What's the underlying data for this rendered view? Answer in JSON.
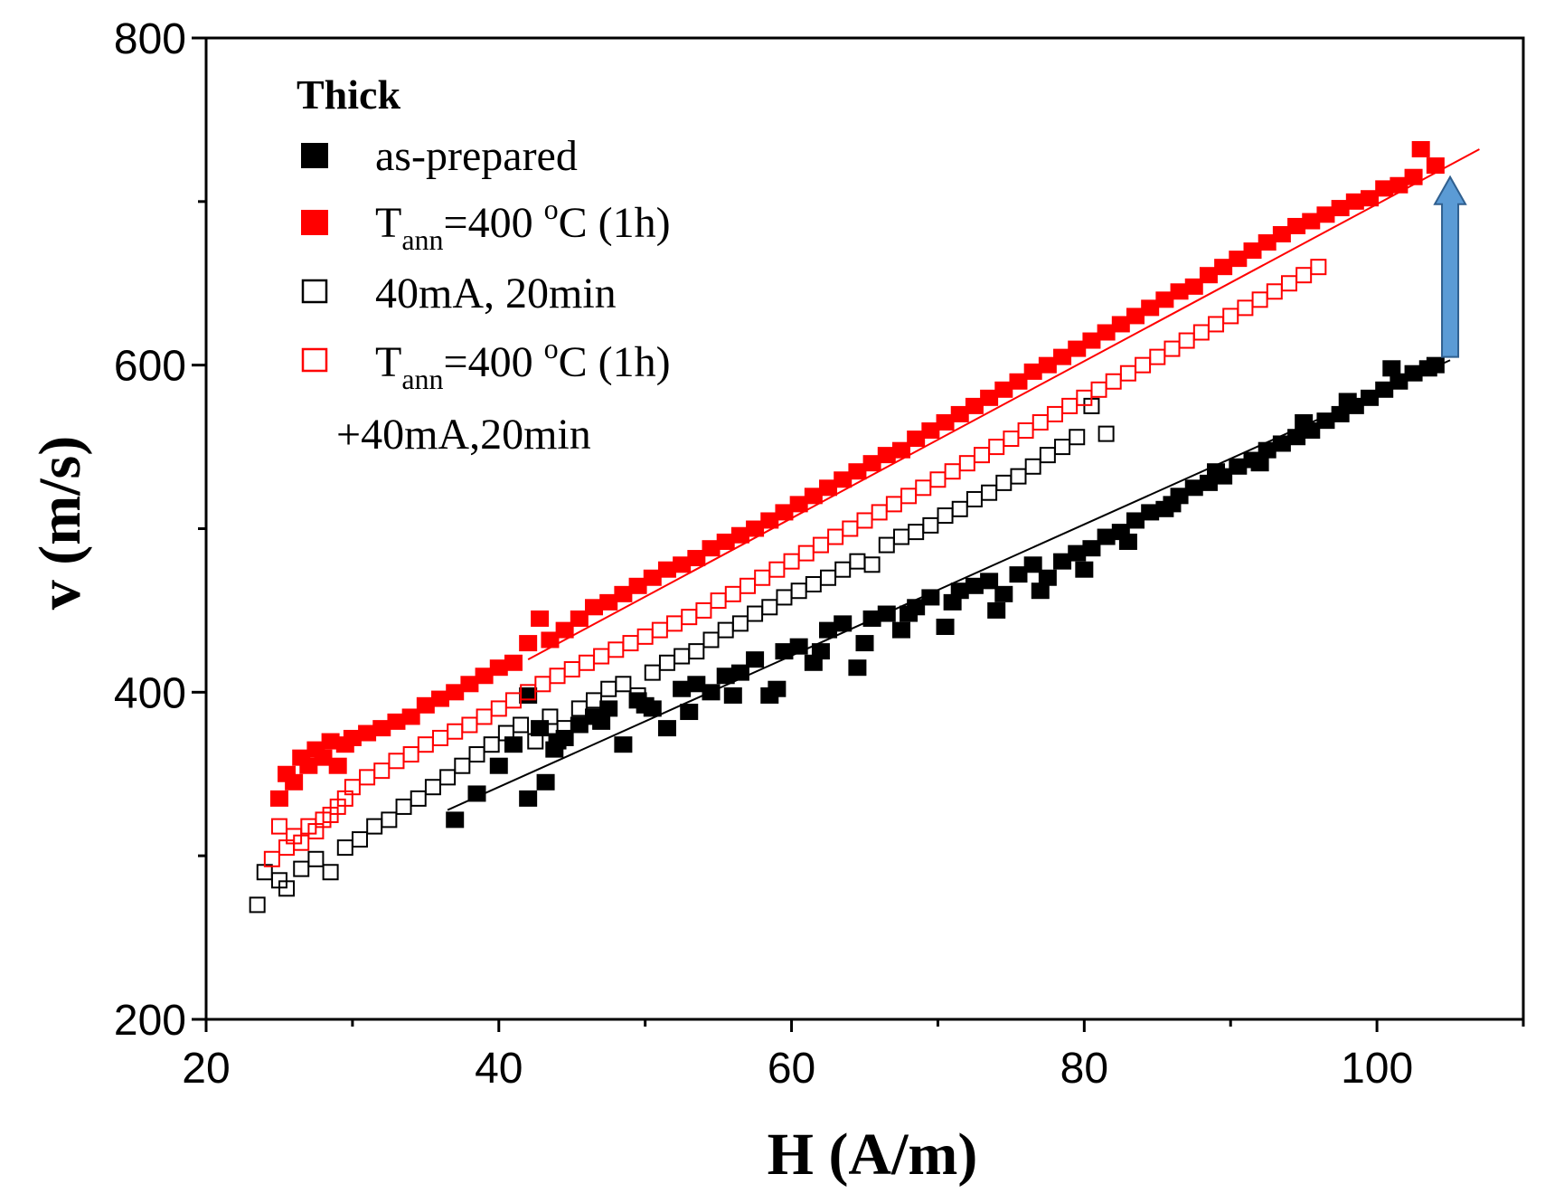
{
  "chart_data": {
    "type": "scatter",
    "title": "",
    "xlabel": "H (A/m)",
    "ylabel": "v (m/s)",
    "xlim": [
      20,
      110
    ],
    "ylim": [
      200,
      800
    ],
    "xticks": [
      20,
      40,
      60,
      80,
      100
    ],
    "yticks": [
      200,
      400,
      600,
      800
    ],
    "xtick_labels": [
      "20",
      "40",
      "60",
      "80",
      "100"
    ],
    "ytick_labels": [
      "200",
      "400",
      "600",
      "800"
    ],
    "legend": {
      "title": "Thick",
      "position": "top-left",
      "entries": {
        "as_prepared": "as-prepared",
        "ann": {
          "prefix": "T",
          "sub": "ann",
          "mid": "=400 ",
          "sup": "o",
          "suffix": "C (1h)"
        },
        "current": "40mA, 20min",
        "ann_current": {
          "prefix": "T",
          "sub": "ann",
          "mid": "=400 ",
          "sup": "o",
          "suffix": "C (1h)",
          "line2": "+40mA,20min"
        }
      }
    },
    "series": [
      {
        "name": "as-prepared",
        "marker": "filled-square",
        "color": "#000000",
        "x": [
          37,
          38.5,
          40,
          41,
          42,
          42.8,
          43.2,
          43.8,
          44.5,
          45.5,
          46.5,
          47.5,
          48.5,
          49.5,
          50.5,
          51.5,
          52.5,
          53.5,
          54.5,
          55.5,
          56.5,
          57.5,
          58.5,
          59.5,
          60.5,
          61.5,
          62.5,
          63.5,
          64.5,
          65.5,
          66.5,
          67.5,
          68.5,
          69.5,
          70.5,
          71.5,
          72.5,
          73.5,
          74.5,
          75.5,
          76.5,
          77.5,
          78.5,
          79.5,
          80.5,
          81.5,
          82.5,
          83.5,
          84.5,
          85.5,
          86.5,
          87.5,
          88.5,
          89.5,
          90.5,
          91.5,
          92.5,
          93.5,
          94.5,
          95.5,
          96.5,
          97.5,
          98.5,
          99.5,
          100.5,
          101.5,
          102.5,
          103.5,
          104,
          42,
          44,
          47,
          50,
          53,
          56,
          59,
          62,
          65,
          68,
          71,
          74,
          77,
          80,
          83,
          86,
          89,
          92,
          95,
          98,
          101
        ],
        "y": [
          322,
          338,
          355,
          368,
          335,
          378,
          345,
          365,
          372,
          380,
          385,
          390,
          368,
          395,
          390,
          378,
          402,
          405,
          400,
          410,
          412,
          420,
          398,
          425,
          428,
          418,
          438,
          442,
          415,
          445,
          448,
          438,
          452,
          458,
          440,
          462,
          465,
          468,
          460,
          472,
          478,
          470,
          480,
          485,
          488,
          495,
          498,
          505,
          510,
          512,
          520,
          525,
          528,
          532,
          538,
          542,
          548,
          552,
          556,
          560,
          566,
          570,
          575,
          580,
          585,
          590,
          595,
          598,
          600,
          398,
          370,
          382,
          392,
          388,
          398,
          402,
          425,
          430,
          448,
          455,
          450,
          462,
          475,
          492,
          515,
          535,
          540,
          565,
          578,
          598
        ]
      },
      {
        "name": "Tann=400 oC (1h)",
        "marker": "filled-square",
        "color": "#ff0000",
        "x": [
          25,
          25.5,
          26,
          26.5,
          27,
          27.5,
          28,
          28.5,
          29,
          29.5,
          30,
          31,
          32,
          33,
          34,
          35,
          36,
          37,
          38,
          39,
          40,
          41,
          42,
          42.8,
          43.5,
          44.5,
          45.5,
          46.5,
          47.5,
          48.5,
          49.5,
          50.5,
          51.5,
          52.5,
          53.5,
          54.5,
          55.5,
          56.5,
          57.5,
          58.5,
          59.5,
          60.5,
          61.5,
          62.5,
          63.5,
          64.5,
          65.5,
          66.5,
          67.5,
          68.5,
          69.5,
          70.5,
          71.5,
          72.5,
          73.5,
          74.5,
          75.5,
          76.5,
          77.5,
          78.5,
          79.5,
          80.5,
          81.5,
          82.5,
          83.5,
          84.5,
          85.5,
          86.5,
          87.5,
          88.5,
          89.5,
          90.5,
          91.5,
          92.5,
          93.5,
          94.5,
          95.5,
          96.5,
          97.5,
          98.5,
          99.5,
          100.5,
          101.5,
          102.5,
          103,
          104
        ],
        "y": [
          335,
          350,
          345,
          360,
          355,
          365,
          360,
          370,
          355,
          368,
          372,
          375,
          378,
          382,
          385,
          392,
          396,
          400,
          405,
          410,
          415,
          418,
          430,
          445,
          432,
          438,
          445,
          452,
          455,
          460,
          465,
          470,
          475,
          478,
          482,
          488,
          492,
          496,
          500,
          505,
          510,
          515,
          520,
          525,
          530,
          535,
          540,
          545,
          548,
          555,
          560,
          565,
          570,
          575,
          580,
          585,
          590,
          596,
          600,
          605,
          610,
          615,
          620,
          625,
          630,
          635,
          640,
          645,
          648,
          655,
          660,
          665,
          670,
          675,
          680,
          685,
          688,
          692,
          696,
          700,
          702,
          708,
          710,
          715,
          732,
          722
        ]
      },
      {
        "name": "40mA, 20min",
        "marker": "open-square",
        "color": "#000000",
        "x": [
          23.5,
          24,
          25,
          25.5,
          26.5,
          27.5,
          28.5,
          29.5,
          30.5,
          31.5,
          32.5,
          33.5,
          34.5,
          35.5,
          36.5,
          37.5,
          38.5,
          39.5,
          40.5,
          41.5,
          42.5,
          43.5,
          44.5,
          45.5,
          46.5,
          47.5,
          48.5,
          49.5,
          50.5,
          51.5,
          52.5,
          53.5,
          54.5,
          55.5,
          56.5,
          57.5,
          58.5,
          59.5,
          60.5,
          61.5,
          62.5,
          63.5,
          64.5,
          65.5,
          66.5,
          67.5,
          68.5,
          69.5,
          70.5,
          71.5,
          72.5,
          73.5,
          74.5,
          75.5,
          76.5,
          77.5,
          78.5,
          79.5,
          80.5,
          81.5
        ],
        "y": [
          270,
          290,
          285,
          280,
          292,
          298,
          290,
          305,
          310,
          318,
          322,
          330,
          335,
          342,
          348,
          355,
          362,
          368,
          375,
          380,
          370,
          385,
          378,
          390,
          395,
          402,
          405,
          398,
          412,
          418,
          422,
          425,
          432,
          438,
          442,
          448,
          452,
          458,
          462,
          466,
          470,
          475,
          480,
          478,
          490,
          495,
          498,
          502,
          508,
          512,
          518,
          522,
          528,
          532,
          538,
          545,
          550,
          556,
          575,
          558
        ]
      },
      {
        "name": "Tann=400 oC (1h) +40mA,20min",
        "marker": "open-square",
        "color": "#ff0000",
        "x": [
          24.5,
          25,
          25.5,
          26,
          26.5,
          27,
          27.5,
          28,
          28.5,
          29,
          29.5,
          30,
          31,
          32,
          33,
          34,
          35,
          36,
          37,
          38,
          39,
          40,
          41,
          42,
          43,
          44,
          45,
          46,
          47,
          48,
          49,
          50,
          51,
          52,
          53,
          54,
          55,
          56,
          57,
          58,
          59,
          60,
          61,
          62,
          63,
          64,
          65,
          66,
          67,
          68,
          69,
          70,
          71,
          72,
          73,
          74,
          75,
          76,
          77,
          78,
          79,
          80,
          81,
          82,
          83,
          84,
          85,
          86,
          87,
          88,
          89,
          90,
          91,
          92,
          93,
          94,
          95,
          96
        ],
        "y": [
          298,
          318,
          305,
          312,
          308,
          318,
          315,
          322,
          325,
          330,
          335,
          342,
          348,
          352,
          358,
          362,
          368,
          372,
          376,
          380,
          385,
          390,
          395,
          400,
          405,
          410,
          414,
          418,
          422,
          426,
          430,
          434,
          438,
          442,
          446,
          450,
          456,
          460,
          465,
          470,
          475,
          480,
          485,
          490,
          495,
          500,
          505,
          510,
          515,
          520,
          525,
          530,
          535,
          540,
          545,
          550,
          555,
          560,
          565,
          570,
          575,
          580,
          585,
          590,
          595,
          600,
          605,
          610,
          615,
          620,
          625,
          630,
          635,
          640,
          645,
          650,
          655,
          660
        ]
      }
    ],
    "fits": [
      {
        "name": "as-prepared fit",
        "color": "#000000",
        "x": [
          36.5,
          105
        ],
        "y": [
          328,
          603
        ]
      },
      {
        "name": "Tann=400 oC (1h) fit",
        "color": "#ff0000",
        "x": [
          42,
          107
        ],
        "y": [
          420,
          732
        ]
      }
    ],
    "annotations": [
      {
        "type": "arrow",
        "direction": "up",
        "color": "#5b9bd5",
        "x": 105,
        "y_from": 605,
        "y_to": 715
      }
    ]
  }
}
